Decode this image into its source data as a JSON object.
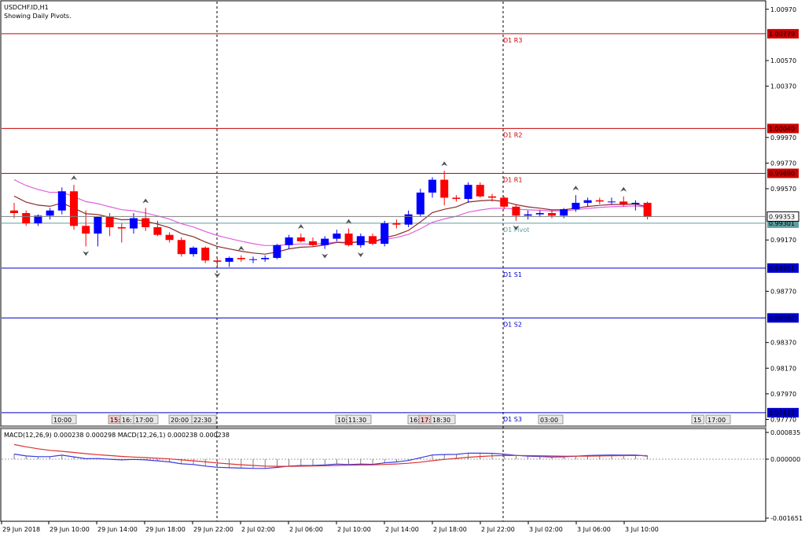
{
  "window": {
    "symbol": "USDCHF.ID,H1",
    "indicator_note": "Showing Daily Pivots."
  },
  "colors": {
    "bull": "#0000ff",
    "bear": "#ff0000",
    "resistance": "#cc0000",
    "support": "#0000cc",
    "pivot": "#5f9ea0",
    "ma_fast": "#8b2a2a",
    "ma_slow": "#e060e0",
    "macd_main": "#3a3ae0",
    "macd_signal": "#e03030",
    "grid": "#000000"
  },
  "pivots": [
    {
      "name": "D1 R3",
      "price": "1.00779",
      "kind": "resistance"
    },
    {
      "name": "D1 R2",
      "price": "1.00040",
      "kind": "resistance"
    },
    {
      "name": "D1 R1",
      "price": "0.99690",
      "kind": "resistance"
    },
    {
      "name": "D1 Pivot",
      "price": "0.99301",
      "kind": "pivot"
    },
    {
      "name": "D1 S1",
      "price": "0.98951",
      "kind": "support"
    },
    {
      "name": "D1 S2",
      "price": "0.98562",
      "kind": "support"
    },
    {
      "name": "D1 S3",
      "price": "0.97823",
      "kind": "support"
    }
  ],
  "current_price": "0.99353",
  "price_axis_ticks": [
    "1.00970",
    "1.00570",
    "1.00370",
    "0.99970",
    "0.99770",
    "0.99570",
    "0.99170",
    "0.98770",
    "0.98370",
    "0.98170",
    "0.97970",
    "0.97770"
  ],
  "session_markers": [
    "10:00",
    "15:",
    "16:",
    "17:00",
    "20:00",
    "22:30",
    "10:",
    "11:30",
    "16:",
    "17:",
    "18:30",
    "03:00",
    "15",
    "17:00"
  ],
  "macd": {
    "label": "MACD(12,26,9) 0.000238 0.000298 MACD(12,26,1) 0.000238 0.000238",
    "axis_ticks": [
      "0.000835",
      "0.000000",
      "-0.001651"
    ]
  },
  "time_axis": [
    "29 Jun 2018",
    "29 Jun 10:00",
    "29 Jun 14:00",
    "29 Jun 18:00",
    "29 Jun 22:00",
    "2 Jul 02:00",
    "2 Jul 06:00",
    "2 Jul 10:00",
    "2 Jul 14:00",
    "2 Jul 18:00",
    "2 Jul 22:00",
    "3 Jul 02:00",
    "3 Jul 06:00",
    "3 Jul 10:00"
  ],
  "chart_data": {
    "type": "candlestick",
    "title": "USDCHF.ID,H1",
    "ylim": [
      0.9773,
      1.0103
    ],
    "candles": [
      {
        "o": 0.994,
        "h": 0.9946,
        "l": 0.9934,
        "c": 0.9938
      },
      {
        "o": 0.9938,
        "h": 0.994,
        "l": 0.9928,
        "c": 0.993
      },
      {
        "o": 0.993,
        "h": 0.9937,
        "l": 0.9928,
        "c": 0.9936
      },
      {
        "o": 0.9936,
        "h": 0.9942,
        "l": 0.9933,
        "c": 0.994
      },
      {
        "o": 0.994,
        "h": 0.9958,
        "l": 0.9937,
        "c": 0.9955
      },
      {
        "o": 0.9955,
        "h": 0.996,
        "l": 0.9925,
        "c": 0.9928
      },
      {
        "o": 0.9928,
        "h": 0.994,
        "l": 0.9912,
        "c": 0.9922
      },
      {
        "o": 0.9922,
        "h": 0.9935,
        "l": 0.9912,
        "c": 0.9935
      },
      {
        "o": 0.9935,
        "h": 0.9938,
        "l": 0.992,
        "c": 0.9927
      },
      {
        "o": 0.9927,
        "h": 0.993,
        "l": 0.9915,
        "c": 0.9926
      },
      {
        "o": 0.9926,
        "h": 0.9938,
        "l": 0.9922,
        "c": 0.9934
      },
      {
        "o": 0.9934,
        "h": 0.9942,
        "l": 0.9924,
        "c": 0.9927
      },
      {
        "o": 0.9927,
        "h": 0.9932,
        "l": 0.992,
        "c": 0.9921
      },
      {
        "o": 0.9921,
        "h": 0.9923,
        "l": 0.9915,
        "c": 0.9917
      },
      {
        "o": 0.9917,
        "h": 0.9919,
        "l": 0.9904,
        "c": 0.9906
      },
      {
        "o": 0.9906,
        "h": 0.9912,
        "l": 0.9904,
        "c": 0.9911
      },
      {
        "o": 0.9911,
        "h": 0.9912,
        "l": 0.9899,
        "c": 0.9901
      },
      {
        "o": 0.9901,
        "h": 0.9903,
        "l": 0.9895,
        "c": 0.99
      },
      {
        "o": 0.99,
        "h": 0.9904,
        "l": 0.9896,
        "c": 0.9903
      },
      {
        "o": 0.9903,
        "h": 0.9905,
        "l": 0.99,
        "c": 0.9902
      },
      {
        "o": 0.9902,
        "h": 0.9904,
        "l": 0.9899,
        "c": 0.9902
      },
      {
        "o": 0.9902,
        "h": 0.9905,
        "l": 0.99,
        "c": 0.9903
      },
      {
        "o": 0.9903,
        "h": 0.9914,
        "l": 0.9902,
        "c": 0.9913
      },
      {
        "o": 0.9913,
        "h": 0.9921,
        "l": 0.991,
        "c": 0.9919
      },
      {
        "o": 0.9919,
        "h": 0.9922,
        "l": 0.9915,
        "c": 0.9916
      },
      {
        "o": 0.9916,
        "h": 0.9919,
        "l": 0.9912,
        "c": 0.9913
      },
      {
        "o": 0.9913,
        "h": 0.992,
        "l": 0.991,
        "c": 0.9918
      },
      {
        "o": 0.9918,
        "h": 0.9925,
        "l": 0.9916,
        "c": 0.9922
      },
      {
        "o": 0.9922,
        "h": 0.9926,
        "l": 0.9912,
        "c": 0.9913
      },
      {
        "o": 0.9913,
        "h": 0.9922,
        "l": 0.9911,
        "c": 0.992
      },
      {
        "o": 0.992,
        "h": 0.9922,
        "l": 0.9913,
        "c": 0.9914
      },
      {
        "o": 0.9914,
        "h": 0.9932,
        "l": 0.9912,
        "c": 0.993
      },
      {
        "o": 0.993,
        "h": 0.9933,
        "l": 0.9926,
        "c": 0.9929
      },
      {
        "o": 0.9929,
        "h": 0.994,
        "l": 0.9927,
        "c": 0.9937
      },
      {
        "o": 0.9937,
        "h": 0.9957,
        "l": 0.9935,
        "c": 0.9954
      },
      {
        "o": 0.9954,
        "h": 0.9966,
        "l": 0.995,
        "c": 0.9964
      },
      {
        "o": 0.9964,
        "h": 0.9971,
        "l": 0.9944,
        "c": 0.995
      },
      {
        "o": 0.995,
        "h": 0.9952,
        "l": 0.9947,
        "c": 0.9949
      },
      {
        "o": 0.9949,
        "h": 0.9962,
        "l": 0.9946,
        "c": 0.996
      },
      {
        "o": 0.996,
        "h": 0.9962,
        "l": 0.995,
        "c": 0.9951
      },
      {
        "o": 0.9951,
        "h": 0.9953,
        "l": 0.9947,
        "c": 0.995
      },
      {
        "o": 0.995,
        "h": 0.9951,
        "l": 0.9941,
        "c": 0.9943
      },
      {
        "o": 0.9943,
        "h": 0.9945,
        "l": 0.9932,
        "c": 0.9936
      },
      {
        "o": 0.9936,
        "h": 0.994,
        "l": 0.9933,
        "c": 0.9937
      },
      {
        "o": 0.9937,
        "h": 0.994,
        "l": 0.9935,
        "c": 0.9938
      },
      {
        "o": 0.9938,
        "h": 0.994,
        "l": 0.9934,
        "c": 0.9936
      },
      {
        "o": 0.9936,
        "h": 0.9942,
        "l": 0.9934,
        "c": 0.9941
      },
      {
        "o": 0.9941,
        "h": 0.9952,
        "l": 0.9939,
        "c": 0.9946
      },
      {
        "o": 0.9946,
        "h": 0.995,
        "l": 0.9943,
        "c": 0.9948
      },
      {
        "o": 0.9948,
        "h": 0.995,
        "l": 0.9945,
        "c": 0.9947
      },
      {
        "o": 0.9947,
        "h": 0.995,
        "l": 0.9945,
        "c": 0.9947
      },
      {
        "o": 0.9947,
        "h": 0.9951,
        "l": 0.9943,
        "c": 0.9945
      },
      {
        "o": 0.9945,
        "h": 0.9948,
        "l": 0.994,
        "c": 0.9946
      },
      {
        "o": 0.9946,
        "h": 0.9947,
        "l": 0.9933,
        "c": 0.9935
      }
    ]
  }
}
